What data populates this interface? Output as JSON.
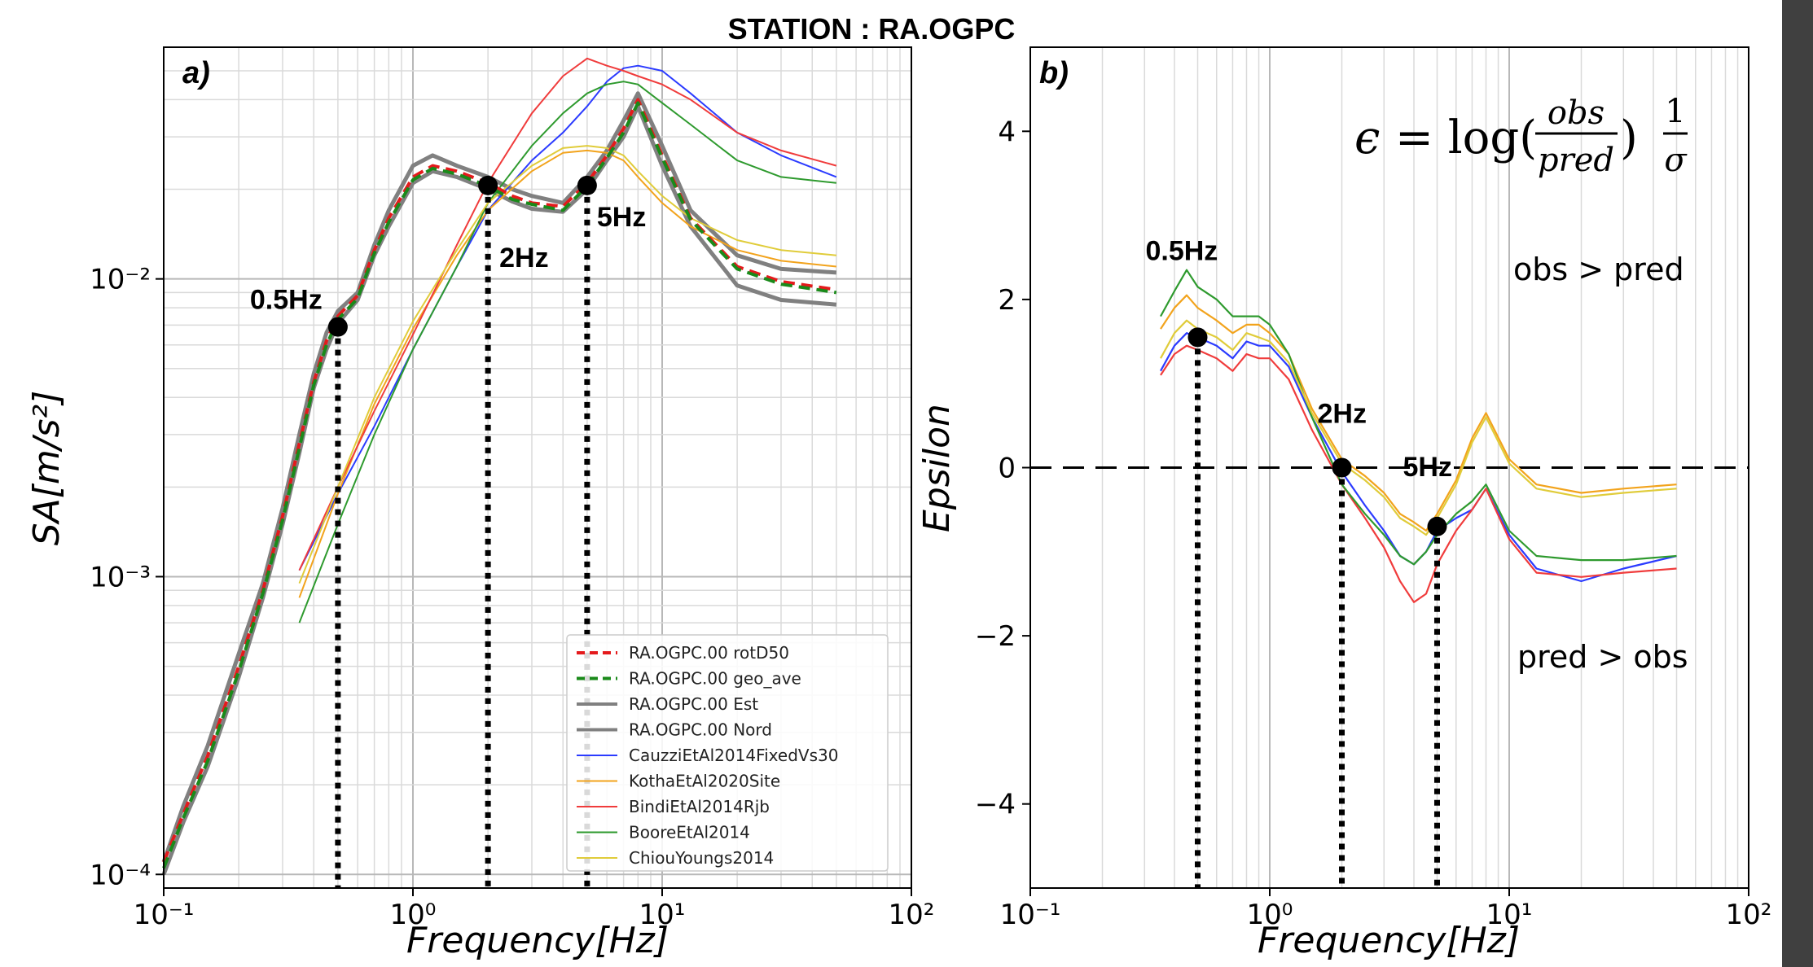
{
  "figure_title": "STATION : RA.OGPC",
  "panels": {
    "a": {
      "label": "a)",
      "ylabel": "SA[m/s²]",
      "xlabel": "Frequency[Hz]"
    },
    "b": {
      "label": "b)",
      "ylabel": "Epsilon",
      "xlabel": "Frequency[Hz]",
      "formula": "ϵ = log(obs/pred)·1/σ",
      "note_top": "obs > pred",
      "note_bottom": "pred > obs"
    }
  },
  "colors": {
    "rotd50": "#e41a1c",
    "geo_ave": "#1a8a1a",
    "obs": "#808080",
    "cauzzi": "#2b3bff",
    "kotha": "#f2a31c",
    "bindi": "#f03c3c",
    "boore": "#2e9a2e",
    "chiou": "#e0cc3a"
  },
  "chart_data": [
    {
      "type": "line",
      "panel": "a",
      "title": "",
      "xlabel": "Frequency[Hz]",
      "ylabel": "SA[m/s²]",
      "x_scale": "log",
      "y_scale": "log",
      "xlim": [
        0.1,
        100
      ],
      "ylim": [
        9e-05,
        0.06
      ],
      "xticks": [
        "10⁻¹",
        "10⁰",
        "10¹",
        "10²"
      ],
      "yticks": [
        "10⁻⁴",
        "10⁻³",
        "10⁻²"
      ],
      "grid": true,
      "legend_position": "lower-right",
      "series": [
        {
          "name": "RA.OGPC.00 rotD50",
          "style": "dashed",
          "color_key": "rotd50",
          "x": [
            0.1,
            0.12,
            0.15,
            0.2,
            0.25,
            0.3,
            0.35,
            0.4,
            0.45,
            0.5,
            0.6,
            0.7,
            0.8,
            1.0,
            1.2,
            1.5,
            2.0,
            2.5,
            3.0,
            4.0,
            5.0,
            6.0,
            7.0,
            8.0,
            10,
            13,
            20,
            30,
            50
          ],
          "y": [
            0.00011,
            0.00016,
            0.00025,
            0.0005,
            0.0009,
            0.0016,
            0.0028,
            0.0045,
            0.0062,
            0.0075,
            0.0088,
            0.0125,
            0.016,
            0.022,
            0.024,
            0.023,
            0.021,
            0.019,
            0.018,
            0.0175,
            0.021,
            0.026,
            0.032,
            0.04,
            0.026,
            0.016,
            0.011,
            0.0098,
            0.0092
          ]
        },
        {
          "name": "RA.OGPC.00 geo_ave",
          "style": "dashed",
          "color_key": "geo_ave",
          "x": [
            0.1,
            0.12,
            0.15,
            0.2,
            0.25,
            0.3,
            0.35,
            0.4,
            0.45,
            0.5,
            0.6,
            0.7,
            0.8,
            1.0,
            1.2,
            1.5,
            2.0,
            2.5,
            3.0,
            4.0,
            5.0,
            6.0,
            7.0,
            8.0,
            10,
            13,
            20,
            30,
            50
          ],
          "y": [
            0.000105,
            0.000155,
            0.00024,
            0.00048,
            0.00088,
            0.00155,
            0.0027,
            0.0044,
            0.006,
            0.0073,
            0.0086,
            0.0122,
            0.0155,
            0.0215,
            0.0235,
            0.0225,
            0.0205,
            0.0185,
            0.0178,
            0.017,
            0.0205,
            0.0255,
            0.031,
            0.039,
            0.0255,
            0.0158,
            0.0108,
            0.0096,
            0.009
          ]
        },
        {
          "name": "RA.OGPC.00 Est",
          "style": "solid",
          "color_key": "obs",
          "x": [
            0.1,
            0.12,
            0.15,
            0.2,
            0.25,
            0.3,
            0.35,
            0.4,
            0.45,
            0.5,
            0.6,
            0.7,
            0.8,
            1.0,
            1.2,
            1.5,
            2.0,
            2.5,
            3.0,
            4.0,
            5.0,
            6.0,
            7.0,
            8.0,
            10,
            13,
            20,
            30,
            50
          ],
          "y": [
            0.00011,
            0.00017,
            0.00027,
            0.00055,
            0.00095,
            0.0017,
            0.003,
            0.0048,
            0.0066,
            0.0078,
            0.009,
            0.013,
            0.017,
            0.024,
            0.026,
            0.024,
            0.022,
            0.02,
            0.019,
            0.018,
            0.022,
            0.027,
            0.034,
            0.042,
            0.028,
            0.017,
            0.012,
            0.0108,
            0.0105
          ]
        },
        {
          "name": "RA.OGPC.00 Nord",
          "style": "solid",
          "color_key": "obs",
          "x": [
            0.1,
            0.12,
            0.15,
            0.2,
            0.25,
            0.3,
            0.35,
            0.4,
            0.45,
            0.5,
            0.6,
            0.7,
            0.8,
            1.0,
            1.2,
            1.5,
            2.0,
            2.5,
            3.0,
            4.0,
            5.0,
            6.0,
            7.0,
            8.0,
            10,
            13,
            20,
            30,
            50
          ],
          "y": [
            0.0001,
            0.00015,
            0.00023,
            0.00046,
            0.00085,
            0.0015,
            0.0026,
            0.0043,
            0.0058,
            0.0071,
            0.0085,
            0.012,
            0.015,
            0.021,
            0.023,
            0.022,
            0.02,
            0.0182,
            0.0172,
            0.0168,
            0.02,
            0.025,
            0.03,
            0.038,
            0.024,
            0.015,
            0.0095,
            0.0085,
            0.0082
          ]
        },
        {
          "name": "CauzziEtAl2014FixedVs30",
          "style": "solid",
          "color_key": "cauzzi",
          "x": [
            0.35,
            0.5,
            0.7,
            1.0,
            1.5,
            2.0,
            3.0,
            4.0,
            5.0,
            6.0,
            7.0,
            8.0,
            10,
            13,
            20,
            30,
            50
          ],
          "y": [
            0.00105,
            0.0019,
            0.0032,
            0.0058,
            0.011,
            0.017,
            0.025,
            0.031,
            0.038,
            0.046,
            0.051,
            0.052,
            0.05,
            0.042,
            0.031,
            0.026,
            0.022
          ]
        },
        {
          "name": "KothaEtAl2020Site",
          "style": "solid",
          "color_key": "kotha",
          "x": [
            0.35,
            0.5,
            0.7,
            1.0,
            1.5,
            2.0,
            3.0,
            4.0,
            5.0,
            6.0,
            7.0,
            8.0,
            10,
            13,
            20,
            30,
            50
          ],
          "y": [
            0.00085,
            0.0019,
            0.0038,
            0.0068,
            0.012,
            0.017,
            0.023,
            0.0265,
            0.027,
            0.0265,
            0.025,
            0.022,
            0.018,
            0.015,
            0.0125,
            0.0115,
            0.011
          ]
        },
        {
          "name": "BindiEtAl2014Rjb",
          "style": "solid",
          "color_key": "bindi",
          "x": [
            0.35,
            0.5,
            0.7,
            1.0,
            1.5,
            2.0,
            3.0,
            4.0,
            5.0,
            6.0,
            7.0,
            8.0,
            10,
            13,
            20,
            30,
            50
          ],
          "y": [
            0.00105,
            0.002,
            0.0036,
            0.0065,
            0.013,
            0.021,
            0.036,
            0.048,
            0.055,
            0.052,
            0.05,
            0.048,
            0.045,
            0.04,
            0.031,
            0.027,
            0.024
          ]
        },
        {
          "name": "BooreEtAl2014",
          "style": "solid",
          "color_key": "boore",
          "x": [
            0.35,
            0.5,
            0.7,
            1.0,
            1.5,
            2.0,
            3.0,
            4.0,
            5.0,
            6.0,
            7.0,
            8.0,
            10,
            13,
            20,
            30,
            50
          ],
          "y": [
            0.0007,
            0.0015,
            0.003,
            0.0058,
            0.011,
            0.018,
            0.028,
            0.036,
            0.042,
            0.045,
            0.046,
            0.045,
            0.039,
            0.033,
            0.025,
            0.022,
            0.021
          ]
        },
        {
          "name": "ChiouYoungs2014",
          "style": "solid",
          "color_key": "chiou",
          "x": [
            0.35,
            0.5,
            0.7,
            1.0,
            1.5,
            2.0,
            3.0,
            4.0,
            5.0,
            6.0,
            7.0,
            8.0,
            10,
            13,
            20,
            30,
            50
          ],
          "y": [
            0.00095,
            0.002,
            0.004,
            0.0072,
            0.0125,
            0.018,
            0.024,
            0.0275,
            0.028,
            0.0275,
            0.026,
            0.023,
            0.019,
            0.016,
            0.0135,
            0.0125,
            0.012
          ]
        }
      ],
      "markers": [
        {
          "label": "0.5Hz",
          "x": 0.5,
          "y": 0.0069
        },
        {
          "label": "2Hz",
          "x": 2.0,
          "y": 0.0206
        },
        {
          "label": "5Hz",
          "x": 5.0,
          "y": 0.0206
        }
      ]
    },
    {
      "type": "line",
      "panel": "b",
      "title": "",
      "xlabel": "Frequency[Hz]",
      "ylabel": "Epsilon",
      "x_scale": "log",
      "xlim": [
        0.1,
        100
      ],
      "ylim": [
        -5,
        5
      ],
      "xticks": [
        "10⁻¹",
        "10⁰",
        "10¹",
        "10²"
      ],
      "yticks": [
        "−4",
        "−2",
        "0",
        "2",
        "4"
      ],
      "grid": true,
      "reference_line": 0,
      "series": [
        {
          "name": "CauzziEtAl2014FixedVs30",
          "color_key": "cauzzi",
          "x": [
            0.35,
            0.4,
            0.45,
            0.5,
            0.6,
            0.7,
            0.8,
            0.9,
            1.0,
            1.2,
            1.5,
            2.0,
            2.5,
            3.0,
            3.5,
            4.0,
            4.5,
            5.0,
            6.0,
            7.0,
            8.0,
            10,
            13,
            20,
            30,
            50
          ],
          "y": [
            1.15,
            1.45,
            1.6,
            1.55,
            1.45,
            1.3,
            1.5,
            1.45,
            1.45,
            1.2,
            0.6,
            -0.05,
            -0.45,
            -0.75,
            -1.05,
            -1.15,
            -1.0,
            -0.75,
            -0.6,
            -0.5,
            -0.25,
            -0.8,
            -1.2,
            -1.35,
            -1.2,
            -1.05
          ]
        },
        {
          "name": "KothaEtAl2020Site",
          "color_key": "kotha",
          "x": [
            0.35,
            0.4,
            0.45,
            0.5,
            0.6,
            0.7,
            0.8,
            0.9,
            1.0,
            1.2,
            1.5,
            2.0,
            2.5,
            3.0,
            3.5,
            4.0,
            4.5,
            5.0,
            6.0,
            7.0,
            8.0,
            10,
            13,
            20,
            30,
            50
          ],
          "y": [
            1.65,
            1.9,
            2.05,
            1.9,
            1.75,
            1.6,
            1.7,
            1.7,
            1.6,
            1.35,
            0.7,
            0.1,
            -0.1,
            -0.3,
            -0.55,
            -0.65,
            -0.75,
            -0.55,
            -0.15,
            0.35,
            0.65,
            0.1,
            -0.2,
            -0.3,
            -0.25,
            -0.2
          ]
        },
        {
          "name": "BindiEtAl2014Rjb",
          "color_key": "bindi",
          "x": [
            0.35,
            0.4,
            0.45,
            0.5,
            0.6,
            0.7,
            0.8,
            0.9,
            1.0,
            1.2,
            1.5,
            2.0,
            2.5,
            3.0,
            3.5,
            4.0,
            4.5,
            5.0,
            6.0,
            7.0,
            8.0,
            10,
            13,
            20,
            30,
            50
          ],
          "y": [
            1.1,
            1.35,
            1.45,
            1.4,
            1.3,
            1.15,
            1.35,
            1.3,
            1.3,
            1.05,
            0.45,
            -0.2,
            -0.6,
            -0.95,
            -1.35,
            -1.6,
            -1.5,
            -1.15,
            -0.75,
            -0.5,
            -0.25,
            -0.85,
            -1.25,
            -1.3,
            -1.25,
            -1.2
          ]
        },
        {
          "name": "BooreEtAl2014",
          "color_key": "boore",
          "x": [
            0.35,
            0.4,
            0.45,
            0.5,
            0.6,
            0.7,
            0.8,
            0.9,
            1.0,
            1.2,
            1.5,
            2.0,
            2.5,
            3.0,
            3.5,
            4.0,
            4.5,
            5.0,
            6.0,
            7.0,
            8.0,
            10,
            13,
            20,
            30,
            50
          ],
          "y": [
            1.8,
            2.1,
            2.35,
            2.15,
            2.0,
            1.8,
            1.8,
            1.8,
            1.7,
            1.35,
            0.6,
            -0.2,
            -0.55,
            -0.8,
            -1.05,
            -1.15,
            -1.0,
            -0.8,
            -0.55,
            -0.4,
            -0.2,
            -0.75,
            -1.05,
            -1.1,
            -1.1,
            -1.05
          ]
        },
        {
          "name": "ChiouYoungs2014",
          "color_key": "chiou",
          "x": [
            0.35,
            0.4,
            0.45,
            0.5,
            0.6,
            0.7,
            0.8,
            0.9,
            1.0,
            1.2,
            1.5,
            2.0,
            2.5,
            3.0,
            3.5,
            4.0,
            4.5,
            5.0,
            6.0,
            7.0,
            8.0,
            10,
            13,
            20,
            30,
            50
          ],
          "y": [
            1.3,
            1.6,
            1.75,
            1.65,
            1.55,
            1.4,
            1.6,
            1.55,
            1.5,
            1.25,
            0.65,
            0.05,
            -0.15,
            -0.35,
            -0.6,
            -0.7,
            -0.8,
            -0.6,
            -0.2,
            0.3,
            0.6,
            0.05,
            -0.25,
            -0.35,
            -0.3,
            -0.25
          ]
        }
      ],
      "markers": [
        {
          "label": "0.5Hz",
          "x": 0.5,
          "y": 1.55
        },
        {
          "label": "2Hz",
          "x": 2.0,
          "y": 0.0
        },
        {
          "label": "5Hz",
          "x": 5.0,
          "y": -0.7
        }
      ]
    }
  ]
}
